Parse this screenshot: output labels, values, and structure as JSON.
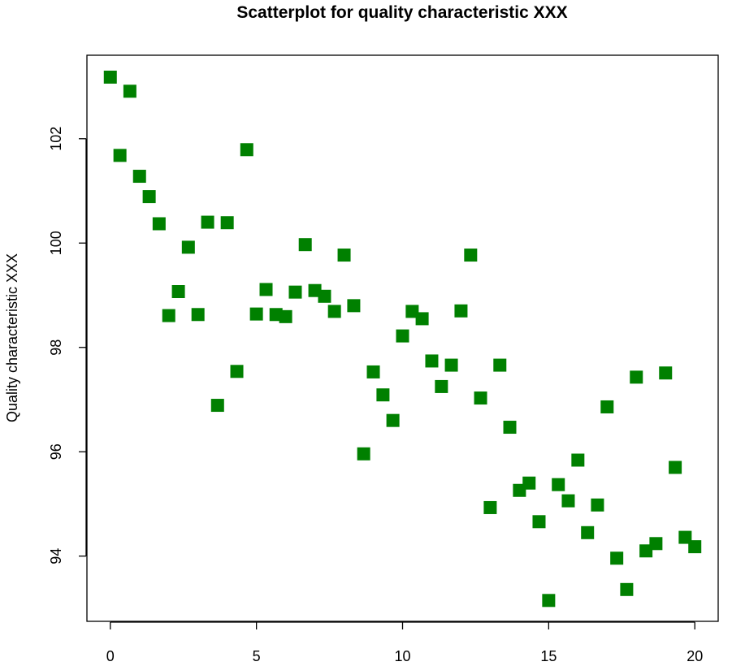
{
  "chart_data": {
    "type": "scatter",
    "title": "Scatterplot for quality characteristic XXX",
    "xlabel": "",
    "ylabel": "Quality characteristic XXX",
    "xlim": [
      -0.8,
      20.8
    ],
    "ylim": [
      92.75,
      103.6
    ],
    "x_ticks": [
      0,
      5,
      10,
      15,
      20
    ],
    "y_ticks": [
      94,
      96,
      98,
      100,
      102
    ],
    "grid": false,
    "marker": "square",
    "marker_color": "#008000",
    "points": [
      {
        "x": 0,
        "y": 103.18
      },
      {
        "x": 0.33,
        "y": 101.68
      },
      {
        "x": 0.67,
        "y": 102.91
      },
      {
        "x": 1,
        "y": 101.28
      },
      {
        "x": 1.33,
        "y": 100.89
      },
      {
        "x": 1.67,
        "y": 100.37
      },
      {
        "x": 2,
        "y": 98.61
      },
      {
        "x": 2.33,
        "y": 99.07
      },
      {
        "x": 2.67,
        "y": 99.92
      },
      {
        "x": 3,
        "y": 98.63
      },
      {
        "x": 3.33,
        "y": 100.4
      },
      {
        "x": 3.67,
        "y": 96.89
      },
      {
        "x": 4,
        "y": 100.39
      },
      {
        "x": 4.33,
        "y": 97.54
      },
      {
        "x": 4.67,
        "y": 101.79
      },
      {
        "x": 5,
        "y": 98.64
      },
      {
        "x": 5.33,
        "y": 99.11
      },
      {
        "x": 5.67,
        "y": 98.63
      },
      {
        "x": 6,
        "y": 98.59
      },
      {
        "x": 6.33,
        "y": 99.06
      },
      {
        "x": 6.67,
        "y": 99.97
      },
      {
        "x": 7,
        "y": 99.09
      },
      {
        "x": 7.33,
        "y": 98.98
      },
      {
        "x": 7.67,
        "y": 98.69
      },
      {
        "x": 8,
        "y": 99.77
      },
      {
        "x": 8.33,
        "y": 98.8
      },
      {
        "x": 8.67,
        "y": 95.96
      },
      {
        "x": 9,
        "y": 97.53
      },
      {
        "x": 9.33,
        "y": 97.09
      },
      {
        "x": 9.67,
        "y": 96.6
      },
      {
        "x": 10,
        "y": 98.22
      },
      {
        "x": 10.33,
        "y": 98.69
      },
      {
        "x": 10.67,
        "y": 98.55
      },
      {
        "x": 11,
        "y": 97.74
      },
      {
        "x": 11.33,
        "y": 97.25
      },
      {
        "x": 11.67,
        "y": 97.66
      },
      {
        "x": 12,
        "y": 98.7
      },
      {
        "x": 12.33,
        "y": 99.77
      },
      {
        "x": 12.67,
        "y": 97.03
      },
      {
        "x": 13,
        "y": 94.93
      },
      {
        "x": 13.33,
        "y": 97.66
      },
      {
        "x": 13.67,
        "y": 96.47
      },
      {
        "x": 14,
        "y": 95.26
      },
      {
        "x": 14.33,
        "y": 95.4
      },
      {
        "x": 14.67,
        "y": 94.66
      },
      {
        "x": 15,
        "y": 93.15
      },
      {
        "x": 15.33,
        "y": 95.37
      },
      {
        "x": 15.67,
        "y": 95.06
      },
      {
        "x": 16,
        "y": 95.84
      },
      {
        "x": 16.33,
        "y": 94.45
      },
      {
        "x": 16.67,
        "y": 94.98
      },
      {
        "x": 17,
        "y": 96.86
      },
      {
        "x": 17.33,
        "y": 93.96
      },
      {
        "x": 17.67,
        "y": 93.36
      },
      {
        "x": 18,
        "y": 97.43
      },
      {
        "x": 18.33,
        "y": 94.1
      },
      {
        "x": 18.67,
        "y": 94.24
      },
      {
        "x": 19,
        "y": 97.51
      },
      {
        "x": 19.33,
        "y": 95.7
      },
      {
        "x": 19.67,
        "y": 94.36
      },
      {
        "x": 20,
        "y": 94.18
      }
    ]
  }
}
